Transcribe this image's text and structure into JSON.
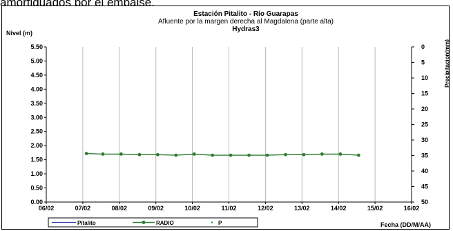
{
  "page": {
    "top_text": "amortiguados por el embalse."
  },
  "chart_data": {
    "type": "line",
    "title": "Estación Pitalito  - Río Guarapas",
    "subtitle": "Afluente por la margen derecha al Magdalena (parte alta)",
    "subtitle2": "Hydras3",
    "ylabel": "Nivel (m)",
    "y2label": "Precipitacion(mm)",
    "xlabel": "Fecha (DD/M/AA)",
    "ylim": [
      0,
      5.5
    ],
    "y2lim": [
      0,
      50
    ],
    "y2_inverted": true,
    "yticks": [
      "0.00",
      "0.50",
      "1.00",
      "1.50",
      "2.00",
      "2.50",
      "3.00",
      "3.50",
      "4.00",
      "4.50",
      "5.00",
      "5.50"
    ],
    "y2ticks": [
      "0",
      "5",
      "10",
      "15",
      "20",
      "25",
      "30",
      "35",
      "40",
      "45",
      "50"
    ],
    "xticks": [
      "06/02",
      "07/02",
      "08/02",
      "09/02",
      "10/02",
      "11/02",
      "12/02",
      "13/02",
      "14/02",
      "15/02",
      "16/02"
    ],
    "xlim": [
      0,
      10
    ],
    "grid": true,
    "legend_position": "bottom",
    "series": [
      {
        "name": "Pitalito",
        "color": "#3333aa",
        "style": "line",
        "values": []
      },
      {
        "name": "RADIO",
        "color": "#2e7d32",
        "style": "line-marker",
        "x": [
          1.1,
          1.55,
          2.05,
          2.55,
          3.05,
          3.55,
          4.05,
          4.55,
          5.05,
          5.55,
          6.05,
          6.55,
          7.05,
          7.55,
          8.05,
          8.55
        ],
        "values": [
          1.72,
          1.7,
          1.7,
          1.68,
          1.68,
          1.66,
          1.7,
          1.66,
          1.66,
          1.66,
          1.66,
          1.68,
          1.68,
          1.7,
          1.7,
          1.66
        ]
      },
      {
        "name": "P",
        "color": "#2e9d3a",
        "style": "marker",
        "values": []
      }
    ]
  }
}
